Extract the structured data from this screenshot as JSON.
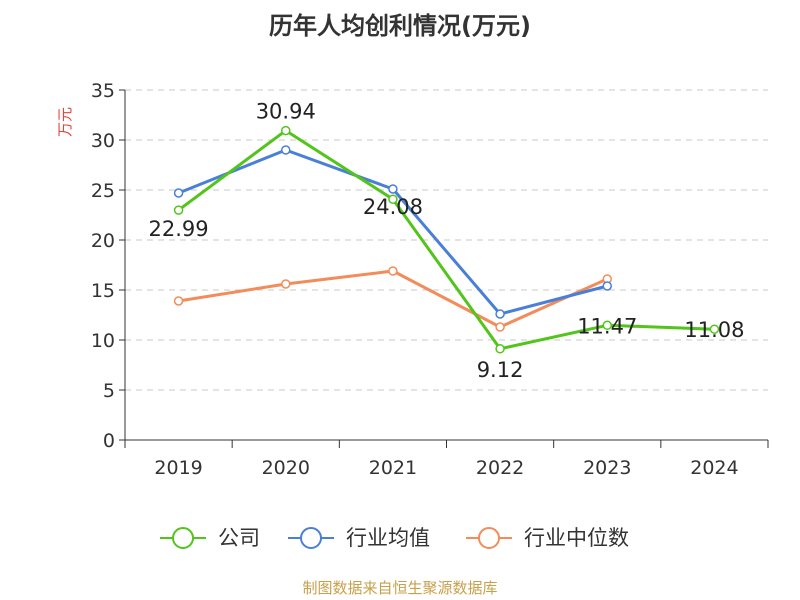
{
  "page_title": "历年人均创利情况(万元)",
  "source_note": "制图数据来自恒生聚源数据库",
  "chart_data": {
    "type": "line",
    "title": "历年人均创利情况(万元)",
    "ylabel": "万元",
    "xlabel": "",
    "categories": [
      "2019",
      "2020",
      "2021",
      "2022",
      "2023",
      "2024"
    ],
    "ylim": [
      0,
      35
    ],
    "yticks": [
      0,
      5,
      10,
      15,
      20,
      25,
      30,
      35
    ],
    "grid": true,
    "legend_position": "bottom",
    "series": [
      {
        "name": "公司",
        "color": "#52c41a",
        "values": [
          22.99,
          30.94,
          24.08,
          9.12,
          11.47,
          11.08
        ],
        "labels": [
          "22.99",
          "30.94",
          "24.08",
          "9.12",
          "11.47",
          "11.08"
        ]
      },
      {
        "name": "行业均值",
        "color": "#4a7fd8",
        "values": [
          24.7,
          29.0,
          25.1,
          12.6,
          15.4,
          null
        ]
      },
      {
        "name": "行业中位数",
        "color": "#f28c5a",
        "values": [
          13.9,
          15.6,
          16.9,
          11.3,
          16.1,
          null
        ]
      }
    ],
    "ylabel_color": "#e0463c"
  }
}
